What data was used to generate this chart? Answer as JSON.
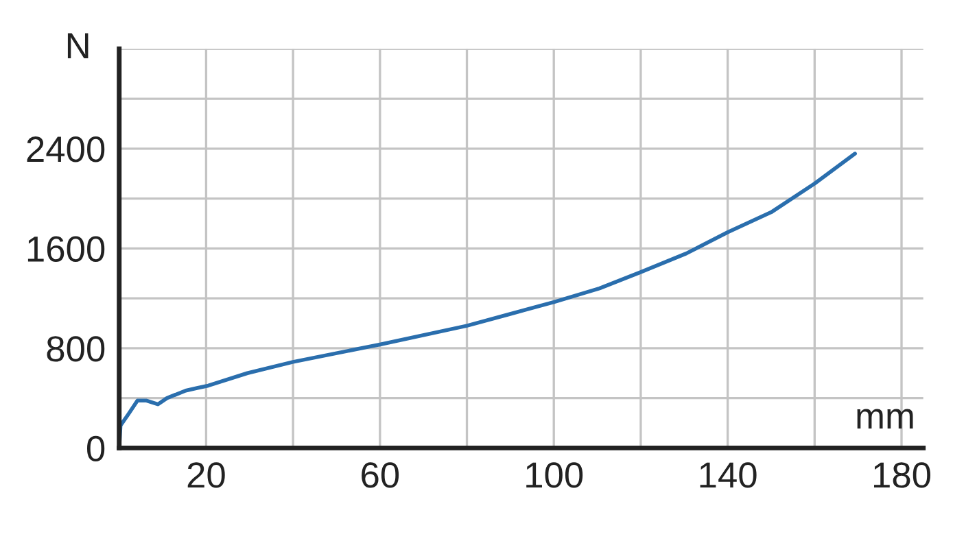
{
  "chart_data": {
    "type": "line",
    "xlabel": "mm",
    "ylabel": "N",
    "xlim": [
      0,
      185
    ],
    "ylim": [
      0,
      3200
    ],
    "xticks": [
      {
        "value": 0,
        "label": null
      },
      20,
      {
        "value": 40,
        "label": null
      },
      60,
      {
        "value": 80,
        "label": null
      },
      100,
      {
        "value": 120,
        "label": null
      },
      140,
      {
        "value": 160,
        "label": null
      },
      180
    ],
    "yticks": [
      0,
      {
        "value": 400,
        "label": null
      },
      800,
      {
        "value": 1200,
        "label": null
      },
      1600,
      {
        "value": 2000,
        "label": null
      },
      2400,
      {
        "value": 2800,
        "label": null
      },
      {
        "value": 3200,
        "label": null
      }
    ],
    "grid": true,
    "marker": "none",
    "line_style": "solid",
    "series": [
      {
        "color": "#2a6ead",
        "x": [
          0,
          0.3,
          2.1,
          4.2,
          6.3,
          8.9,
          11,
          15.3,
          17.9,
          20.5,
          29.5,
          40,
          60,
          80,
          89.5,
          100,
          110.5,
          120,
          130.5,
          140,
          150,
          160,
          169.3
        ],
        "values": [
          0,
          180,
          270,
          380,
          380,
          350,
          400,
          460,
          480,
          500,
          600,
          690,
          830,
          980,
          1070,
          1170,
          1280,
          1410,
          1560,
          1730,
          1890,
          2120,
          2360
        ]
      }
    ]
  }
}
